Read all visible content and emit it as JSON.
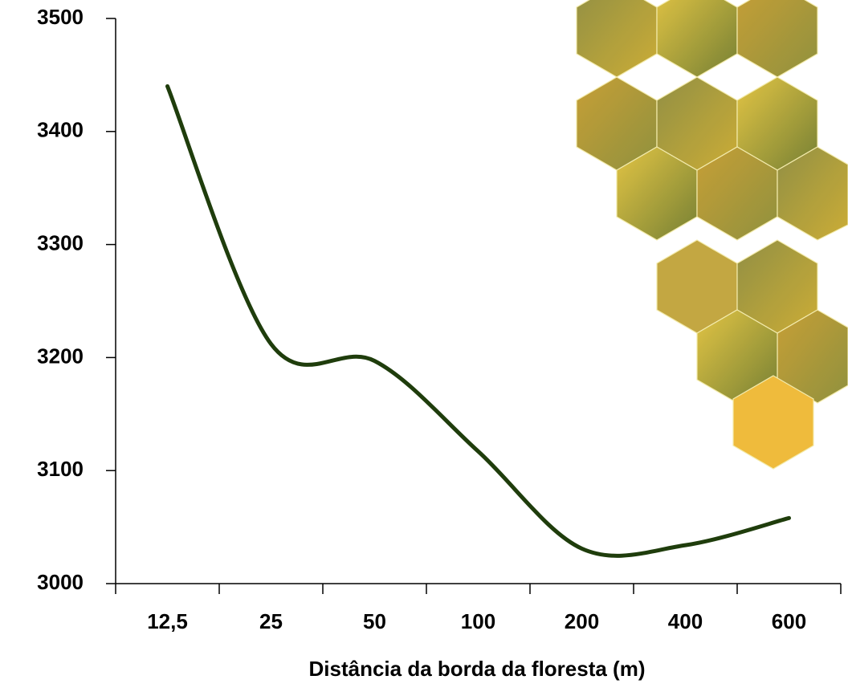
{
  "chart_data": {
    "type": "line",
    "categories": [
      "12,5",
      "25",
      "50",
      "100",
      "200",
      "400",
      "600"
    ],
    "values": [
      3440,
      3212,
      3197,
      3117,
      3031,
      3034,
      3058
    ],
    "color": "#1f3d0c",
    "smooth": true,
    "ylim": [
      3000,
      3500
    ],
    "yticks": [
      3000,
      3100,
      3200,
      3300,
      3400,
      3500
    ],
    "x_label": "Distância da borda da floresta (m)",
    "grid": false
  }
}
